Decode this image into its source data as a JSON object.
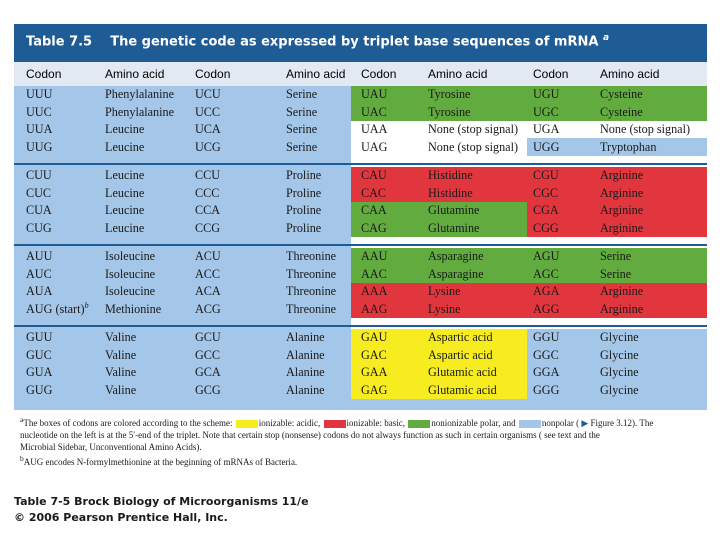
{
  "colors": {
    "title_bg": "#1f5c96",
    "header_bg": "#e2e9f2",
    "nonpolar": "#a4c6e8",
    "polar": "#62ab3e",
    "basic": "#e2363e",
    "acidic": "#f6ec1f",
    "stop": "#ffffff",
    "divider": "#1f5c96"
  },
  "title": {
    "label": "Table 7.5",
    "text": "The genetic code as expressed by triplet base sequences of mRNA",
    "sup": "a"
  },
  "headers": [
    "Codon",
    "Amino acid",
    "Codon",
    "Amino acid",
    "Codon",
    "Amino acid",
    "Codon",
    "Amino acid"
  ],
  "groups": [
    {
      "rows": [
        [
          {
            "codon": "UUU",
            "aa": "Phenylalanine"
          },
          {
            "codon": "UCU",
            "aa": "Serine"
          },
          {
            "codon": "UAU",
            "aa": "Tyrosine"
          },
          {
            "codon": "UGU",
            "aa": "Cysteine"
          }
        ],
        [
          {
            "codon": "UUC",
            "aa": "Phenylalanine"
          },
          {
            "codon": "UCC",
            "aa": "Serine"
          },
          {
            "codon": "UAC",
            "aa": "Tyrosine"
          },
          {
            "codon": "UGC",
            "aa": "Cysteine"
          }
        ],
        [
          {
            "codon": "UUA",
            "aa": "Leucine"
          },
          {
            "codon": "UCA",
            "aa": "Serine"
          },
          {
            "codon": "UAA",
            "aa": "None (stop signal)"
          },
          {
            "codon": "UGA",
            "aa": "None (stop signal)"
          }
        ],
        [
          {
            "codon": "UUG",
            "aa": "Leucine"
          },
          {
            "codon": "UCG",
            "aa": "Serine"
          },
          {
            "codon": "UAG",
            "aa": "None (stop signal)"
          },
          {
            "codon": "UGG",
            "aa": "Tryptophan"
          }
        ]
      ]
    },
    {
      "rows": [
        [
          {
            "codon": "CUU",
            "aa": "Leucine"
          },
          {
            "codon": "CCU",
            "aa": "Proline"
          },
          {
            "codon": "CAU",
            "aa": "Histidine"
          },
          {
            "codon": "CGU",
            "aa": "Arginine"
          }
        ],
        [
          {
            "codon": "CUC",
            "aa": "Leucine"
          },
          {
            "codon": "CCC",
            "aa": "Proline"
          },
          {
            "codon": "CAC",
            "aa": "Histidine"
          },
          {
            "codon": "CGC",
            "aa": "Arginine"
          }
        ],
        [
          {
            "codon": "CUA",
            "aa": "Leucine"
          },
          {
            "codon": "CCA",
            "aa": "Proline"
          },
          {
            "codon": "CAA",
            "aa": "Glutamine"
          },
          {
            "codon": "CGA",
            "aa": "Arginine"
          }
        ],
        [
          {
            "codon": "CUG",
            "aa": "Leucine"
          },
          {
            "codon": "CCG",
            "aa": "Proline"
          },
          {
            "codon": "CAG",
            "aa": "Glutamine"
          },
          {
            "codon": "CGG",
            "aa": "Arginine"
          }
        ]
      ]
    },
    {
      "rows": [
        [
          {
            "codon": "AUU",
            "aa": "Isoleucine"
          },
          {
            "codon": "ACU",
            "aa": "Threonine"
          },
          {
            "codon": "AAU",
            "aa": "Asparagine"
          },
          {
            "codon": "AGU",
            "aa": "Serine"
          }
        ],
        [
          {
            "codon": "AUC",
            "aa": "Isoleucine"
          },
          {
            "codon": "ACC",
            "aa": "Threonine"
          },
          {
            "codon": "AAC",
            "aa": "Asparagine"
          },
          {
            "codon": "AGC",
            "aa": "Serine"
          }
        ],
        [
          {
            "codon": "AUA",
            "aa": "Isoleucine"
          },
          {
            "codon": "ACA",
            "aa": "Threonine"
          },
          {
            "codon": "AAA",
            "aa": "Lysine"
          },
          {
            "codon": "AGA",
            "aa": "Arginine"
          }
        ],
        [
          {
            "codon": "AUG (start)",
            "codon_sup": "b",
            "aa": "Methionine"
          },
          {
            "codon": "ACG",
            "aa": "Threonine"
          },
          {
            "codon": "AAG",
            "aa": "Lysine"
          },
          {
            "codon": "AGG",
            "aa": "Arginine"
          }
        ]
      ]
    },
    {
      "rows": [
        [
          {
            "codon": "GUU",
            "aa": "Valine"
          },
          {
            "codon": "GCU",
            "aa": "Alanine"
          },
          {
            "codon": "GAU",
            "aa": "Aspartic acid"
          },
          {
            "codon": "GGU",
            "aa": "Glycine"
          }
        ],
        [
          {
            "codon": "GUC",
            "aa": "Valine"
          },
          {
            "codon": "GCC",
            "aa": "Alanine"
          },
          {
            "codon": "GAC",
            "aa": "Aspartic acid"
          },
          {
            "codon": "GGC",
            "aa": "Glycine"
          }
        ],
        [
          {
            "codon": "GUA",
            "aa": "Valine"
          },
          {
            "codon": "GCA",
            "aa": "Alanine"
          },
          {
            "codon": "GAA",
            "aa": "Glutamic acid"
          },
          {
            "codon": "GGA",
            "aa": "Glycine"
          }
        ],
        [
          {
            "codon": "GUG",
            "aa": "Valine"
          },
          {
            "codon": "GCG",
            "aa": "Alanine"
          },
          {
            "codon": "GAG",
            "aa": "Glutamic acid"
          },
          {
            "codon": "GGG",
            "aa": "Glycine"
          }
        ]
      ]
    }
  ],
  "footnote": {
    "a_mark": "a",
    "a_text_1": "The boxes of codons are colored according to the scheme:",
    "acidic_label": "ionizable: acidic,",
    "basic_label": "ionizable: basic,",
    "polar_label": "nonionizable polar, and",
    "nonpolar_label": "nonpolar (",
    "figure_ref": "Figure 3.12). The",
    "a_text_2": "nucleotide on the left is at the 5′-end of the triplet. Note that certain stop (nonsense) codons do not always function as such in certain organisms ( see text and the",
    "a_text_3": "Microbial Sidebar, Unconventional Amino Acids).",
    "b_mark": "b",
    "b_text": "AUG encodes N-formylmethionine at the beginning of mRNAs of Bacteria."
  },
  "caption": {
    "line1": "Table 7-5  Brock Biology of Microorganisms 11/e",
    "line2": "© 2006 Pearson Prentice Hall, Inc."
  }
}
